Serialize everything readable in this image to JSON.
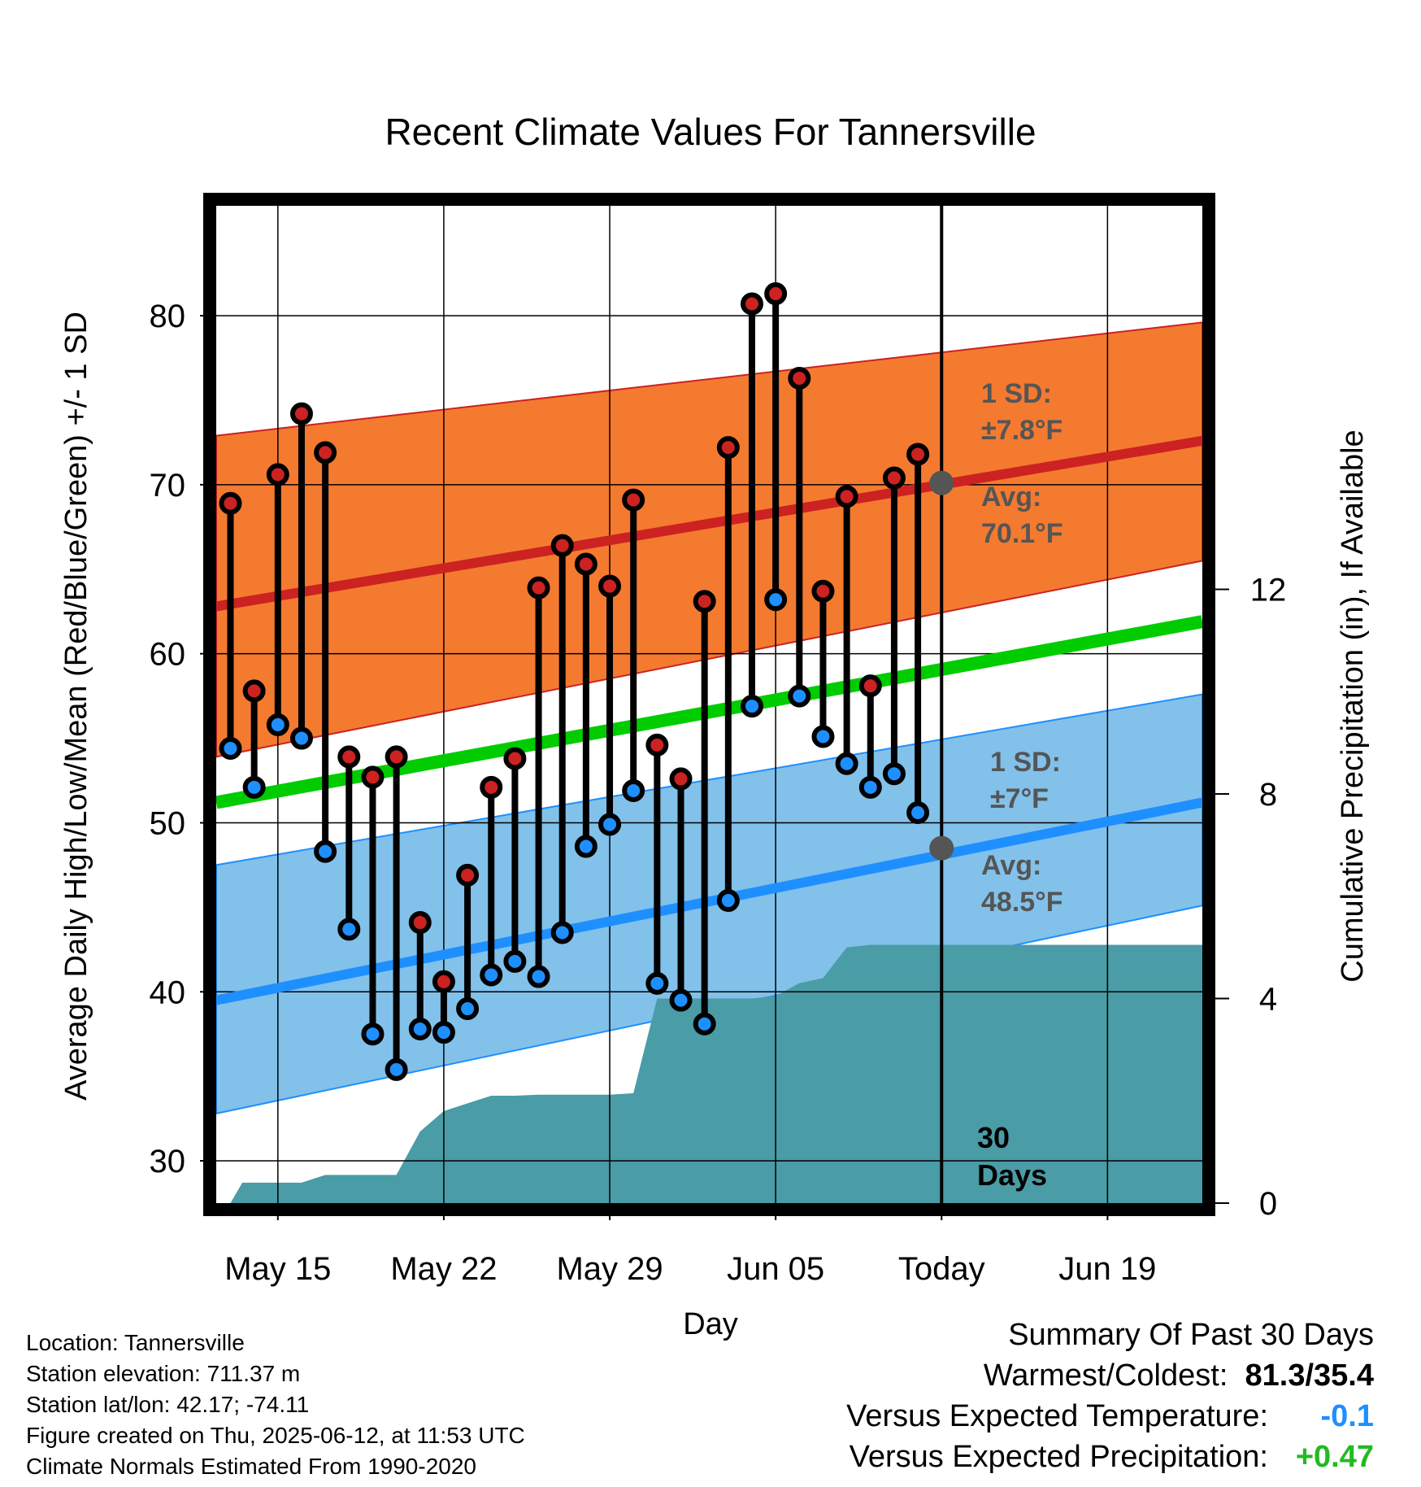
{
  "chart_data": {
    "type": "line",
    "title": "Recent Climate Values For Tannersville",
    "xlabel": "Day",
    "ylabel": "Average Daily High/Low/Mean (Red/Blue/Green) +/- 1 SD",
    "y2label": "Cumulative Precipitation (in), If Available",
    "ylim": [
      27.5,
      86.5
    ],
    "y2lim": [
      0,
      19.5
    ],
    "xlim": [
      -2.6,
      39
    ],
    "yticks": [
      30,
      40,
      50,
      60,
      70,
      80
    ],
    "y2ticks": [
      0,
      4,
      8,
      12
    ],
    "xticks": [
      {
        "x": 0,
        "label": "May 15"
      },
      {
        "x": 7,
        "label": "May 22"
      },
      {
        "x": 14,
        "label": "May 29"
      },
      {
        "x": 21,
        "label": "Jun 05"
      },
      {
        "x": 28,
        "label": "Today"
      },
      {
        "x": 35,
        "label": "Jun 19"
      }
    ],
    "grid": true,
    "today_x": 28,
    "today_text": [
      "30",
      "Days"
    ],
    "daily_x": [
      -2,
      -1,
      0,
      1,
      2,
      3,
      4,
      5,
      6,
      7,
      8,
      9,
      10,
      11,
      12,
      13,
      14,
      15,
      16,
      17,
      18,
      19,
      20,
      21,
      22,
      23,
      24,
      25,
      26,
      27
    ],
    "daily_high": [
      68.9,
      57.8,
      70.6,
      74.2,
      71.9,
      53.9,
      52.7,
      53.9,
      44.1,
      40.6,
      46.9,
      52.1,
      53.8,
      63.9,
      66.4,
      65.3,
      64.0,
      69.1,
      54.6,
      52.6,
      63.1,
      72.2,
      80.7,
      81.3,
      76.3,
      63.7,
      69.3,
      58.1,
      70.4,
      71.8
    ],
    "daily_low": [
      54.4,
      52.1,
      55.8,
      55.0,
      48.3,
      43.7,
      37.5,
      35.4,
      37.8,
      37.6,
      39.0,
      41.0,
      41.8,
      40.9,
      43.5,
      48.6,
      49.9,
      51.9,
      40.5,
      39.5,
      38.1,
      45.4,
      56.9,
      63.2,
      57.5,
      55.1,
      53.5,
      52.1,
      52.9,
      50.6
    ],
    "normals": {
      "x": [
        -2.6,
        39
      ],
      "high_avg": [
        62.8,
        72.6
      ],
      "high_upper": [
        72.9,
        79.6
      ],
      "high_lower": [
        53.9,
        65.5
      ],
      "low_avg": [
        39.5,
        51.2
      ],
      "low_upper": [
        47.5,
        57.6
      ],
      "low_lower": [
        32.8,
        45.1
      ],
      "mean": [
        51.2,
        61.9
      ]
    },
    "annotations": {
      "high_sd_label": "1 SD:",
      "high_sd_value": "±7.8°F",
      "high_avg_label": "Avg:",
      "high_avg_value": "70.1°F",
      "high_avg_today": 70.1,
      "low_sd_label": "1 SD:",
      "low_sd_value": "±7°F",
      "low_avg_label": "Avg:",
      "low_avg_value": "48.5°F",
      "low_avg_today": 48.5
    },
    "precip": {
      "x": [
        -2,
        -1.5,
        1,
        2,
        5,
        6,
        7,
        8,
        9,
        10,
        11,
        12,
        13,
        14,
        15,
        16,
        17,
        18,
        19,
        20,
        21,
        22,
        23,
        24,
        25,
        26,
        27,
        28,
        39
      ],
      "y": [
        0,
        0.4,
        0.4,
        0.55,
        0.55,
        1.4,
        1.8,
        1.95,
        2.1,
        2.1,
        2.12,
        2.12,
        2.12,
        2.12,
        2.15,
        4.0,
        4.0,
        4.0,
        4.0,
        4.0,
        4.05,
        4.3,
        4.4,
        5.0,
        5.05,
        5.05,
        5.05,
        5.05,
        5.05
      ]
    },
    "colors": {
      "high": "#cc2222",
      "low": "#1e8fff",
      "mean": "#00cc00",
      "high_band": "#f47a30",
      "low_band": "#82c1ea",
      "precip": "#4a9ca6",
      "annotation": "#555555"
    }
  },
  "info": {
    "location": "Location: Tannersville",
    "elevation": "Station elevation: 711.37 m",
    "latlon": "Station lat/lon: 42.17; -74.11",
    "created": "Figure created on Thu, 2025-06-12, at 11:53 UTC",
    "normals": "Climate Normals Estimated From 1990-2020"
  },
  "summary": {
    "title": "Summary Of Past 30 Days",
    "warmest_label": "Warmest/Coldest:",
    "warmest_value": "81.3/35.4",
    "temp_label": "Versus Expected Temperature:",
    "temp_value": "-0.1",
    "temp_color": "#1e8fff",
    "precip_label": "Versus Expected Precipitation:",
    "precip_value": "+0.47",
    "precip_color": "#22bb22"
  }
}
